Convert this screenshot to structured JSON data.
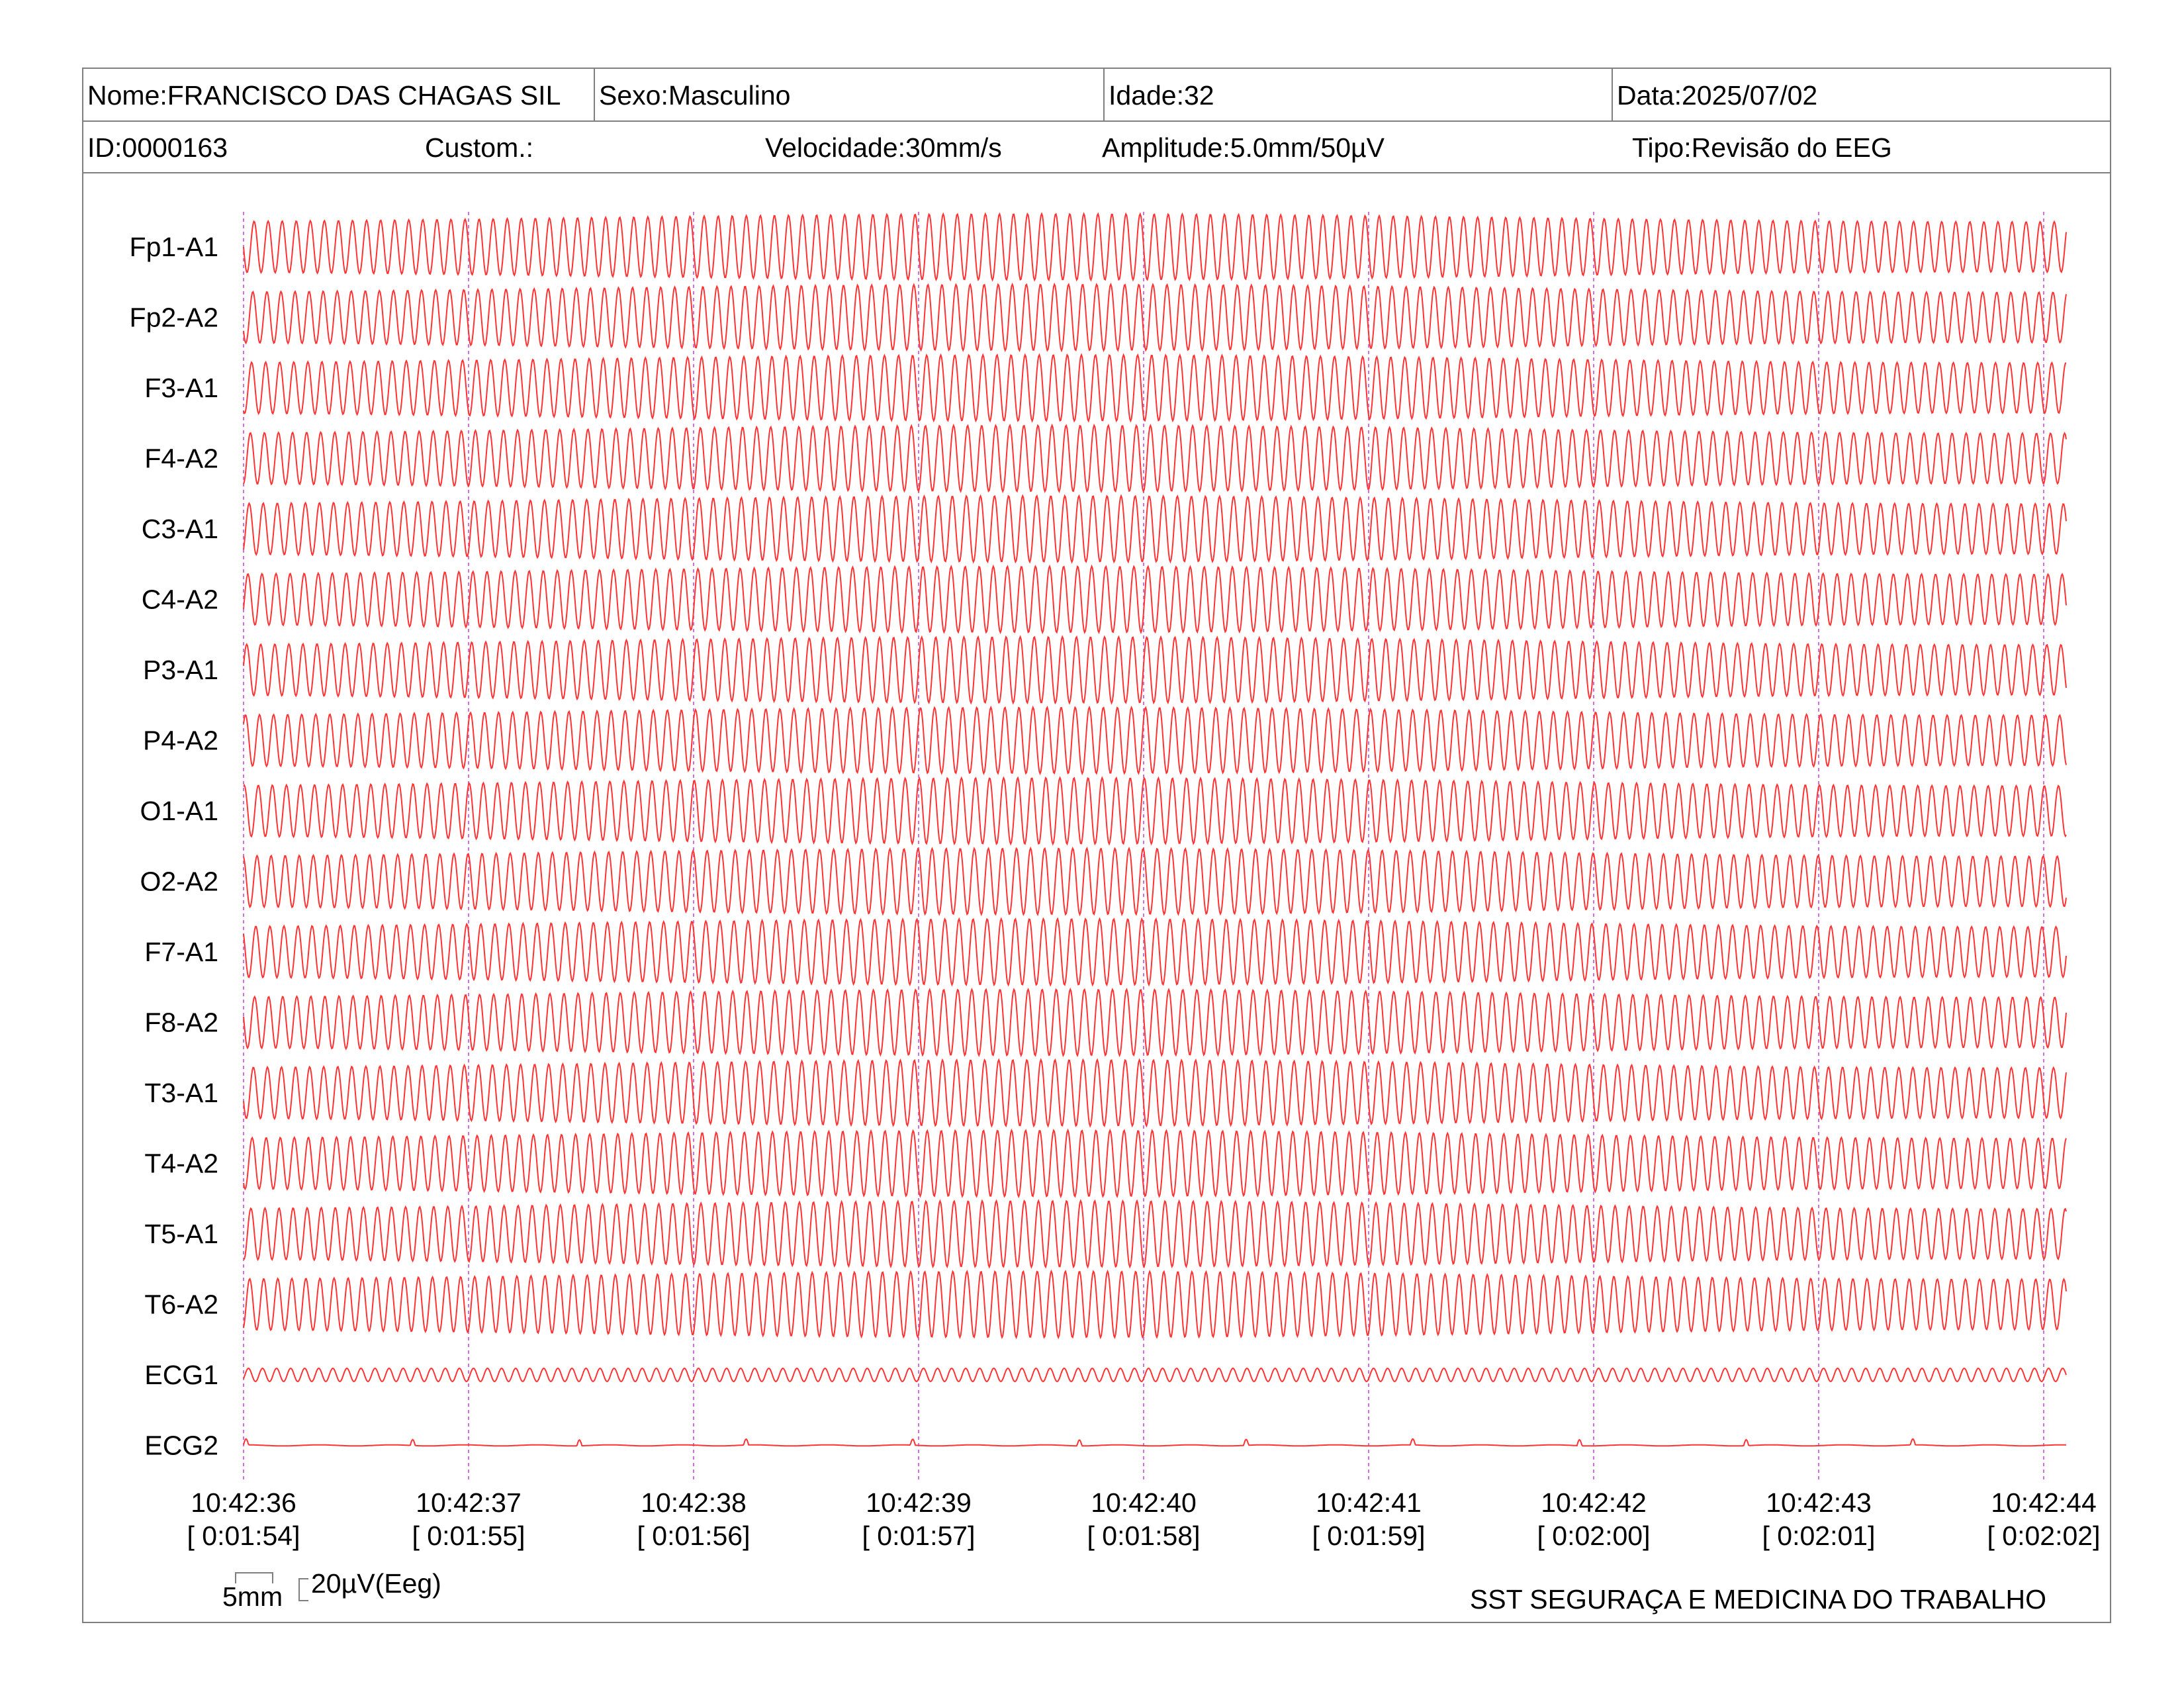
{
  "header": {
    "nome": "Nome:FRANCISCO DAS CHAGAS SIL",
    "sexo": "Sexo:Masculino",
    "idade": "Idade:32",
    "data": "Data:2025/07/02",
    "id": "ID:0000163",
    "custom": "Custom.:",
    "velocidade": "Velocidade:30mm/s",
    "amplitude": "Amplitude:5.0mm/50µV",
    "tipo": "Tipo:Revisão do EEG"
  },
  "calibration": {
    "time_label": "5mm",
    "amp_label": "20µV(Eeg)"
  },
  "footer": {
    "company": "SST SEGURAÇA E MEDICINA DO TRABALHO"
  },
  "colors": {
    "trace": "#ff3333",
    "second_marker": "#d070e0",
    "border": "#7f7f7f"
  },
  "chart_data": {
    "type": "line",
    "channels": [
      "Fp1-A1",
      "Fp2-A2",
      "F3-A1",
      "F4-A2",
      "C3-A1",
      "C4-A2",
      "P3-A1",
      "P4-A2",
      "O1-A1",
      "O2-A2",
      "F7-A1",
      "F8-A2",
      "T3-A1",
      "T4-A2",
      "T5-A1",
      "T6-A2",
      "ECG1",
      "ECG2"
    ],
    "time_ticks": [
      {
        "clock": "10:42:36",
        "elapsed": "[ 0:01:54]"
      },
      {
        "clock": "10:42:37",
        "elapsed": "[ 0:01:55]"
      },
      {
        "clock": "10:42:38",
        "elapsed": "[ 0:01:56]"
      },
      {
        "clock": "10:42:39",
        "elapsed": "[ 0:01:57]"
      },
      {
        "clock": "10:42:40",
        "elapsed": "[ 0:01:58]"
      },
      {
        "clock": "10:42:41",
        "elapsed": "[ 0:01:59]"
      },
      {
        "clock": "10:42:42",
        "elapsed": "[ 0:02:00]"
      },
      {
        "clock": "10:42:43",
        "elapsed": "[ 0:02:01]"
      },
      {
        "clock": "10:42:44",
        "elapsed": "[ 0:02:02]"
      }
    ],
    "duration_s": 8.1,
    "eeg_frequency_hz": 16,
    "grid": false
  }
}
